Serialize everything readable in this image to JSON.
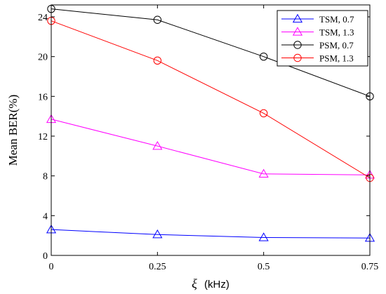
{
  "chart_data": {
    "type": "line",
    "xlabel_symbol": "ξ",
    "xlabel_unit": "(kHz)",
    "ylabel": "Mean BER(%)",
    "x": [
      0,
      0.25,
      0.5,
      0.75
    ],
    "x_tick_labels": [
      "0",
      "0.25",
      "0.5",
      "0.75"
    ],
    "xlim": [
      0,
      0.75
    ],
    "y_ticks": [
      0,
      4,
      8,
      12,
      16,
      20,
      24
    ],
    "ylim": [
      0,
      25.2
    ],
    "grid": false,
    "legend_position": "top-right",
    "series": [
      {
        "name": "TSM, 0.7",
        "color": "#0000ff",
        "marker": "triangle",
        "values": [
          2.6,
          2.1,
          1.8,
          1.75
        ]
      },
      {
        "name": "TSM, 1.3",
        "color": "#ff00ff",
        "marker": "triangle",
        "values": [
          13.7,
          11.0,
          8.2,
          8.1
        ]
      },
      {
        "name": "PSM, 0.7",
        "color": "#000000",
        "marker": "circle",
        "values": [
          24.8,
          23.7,
          20.0,
          16.0
        ]
      },
      {
        "name": "PSM, 1.3",
        "color": "#ff0000",
        "marker": "circle",
        "values": [
          23.6,
          19.6,
          14.3,
          7.8
        ]
      }
    ]
  }
}
